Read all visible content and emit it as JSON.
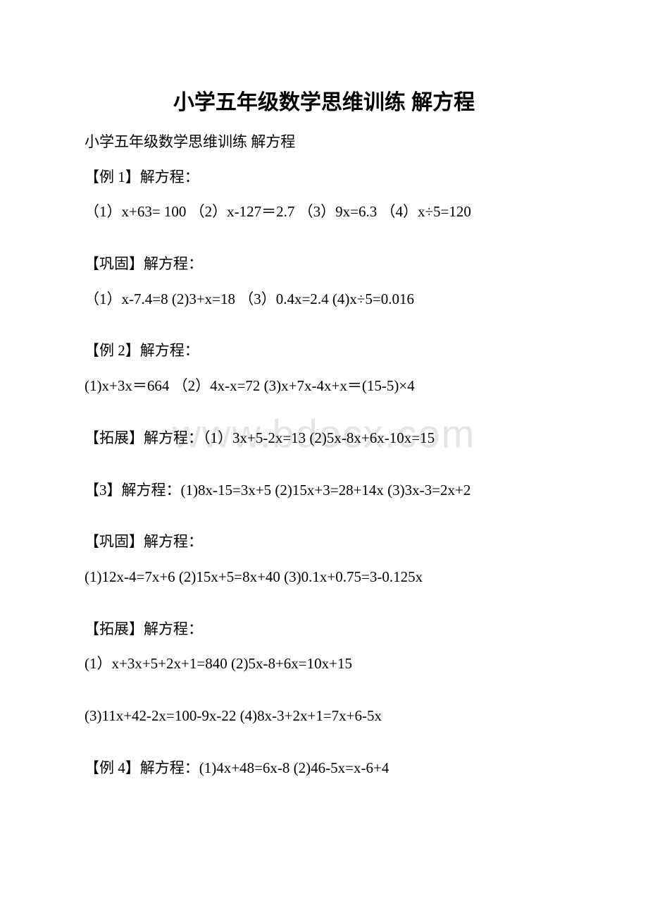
{
  "watermark": "www.bdocx.com",
  "title": "小学五年级数学思维训练 解方程",
  "subtitle": "小学五年级数学思维训练 解方程",
  "lines": [
    "【例 1】解方程：",
    "（1）x+63= 100 （2）x-127＝2.7 （3）9x=6.3 （4）x÷5=120",
    "",
    "【巩固】解方程：",
    "（1）x-7.4=8 (2)3+x=18 （3）0.4x=2.4 (4)x÷5=0.016",
    "",
    "【例 2】解方程：",
    "(1)x+3x＝664 （2）4x-x=72 (3)x+7x-4x+x＝(15-5)×4",
    "",
    "【拓展】解方程：（1）3x+5-2x=13 (2)5x-8x+6x-10x=15",
    "",
    "【3】解方程：(1)8x-15=3x+5 (2)15x+3=28+14x (3)3x-3=2x+2",
    "",
    "【巩固】解方程：",
    "(1)12x-4=7x+6 (2)15x+5=8x+40 (3)0.1x+0.75=3-0.125x",
    "",
    "【拓展】解方程：",
    "(1）x+3x+5+2x+1=840 (2)5x-8+6x=10x+15",
    "",
    "(3)11x+42-2x=100-9x-22 (4)8x-3+2x+1=7x+6-5x",
    "",
    "【例 4】解方程：(1)4x+48=6x-8 (2)46-5x=x-6+4"
  ],
  "colors": {
    "background": "#ffffff",
    "text": "#000000",
    "watermark": "rgba(180, 180, 180, 0.35)"
  },
  "fonts": {
    "title_size": 30,
    "body_size": 21,
    "watermark_size": 56
  }
}
